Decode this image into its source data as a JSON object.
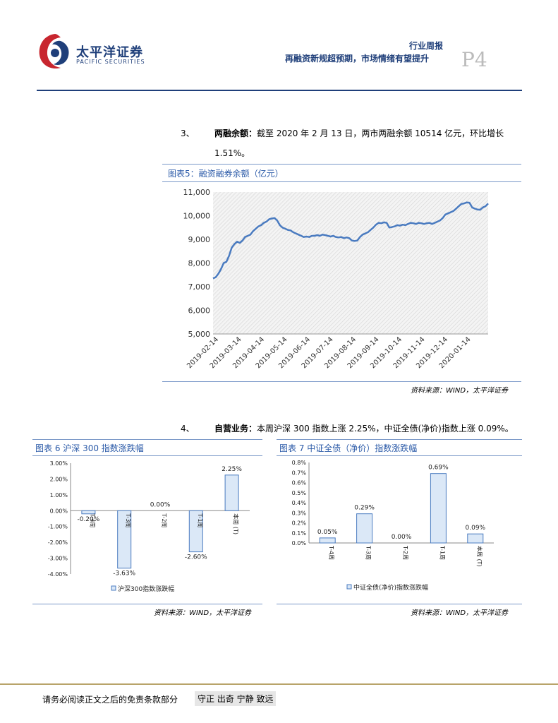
{
  "header": {
    "logo_cn": "太平洋证券",
    "logo_en": "PACIFIC SECURITIES",
    "report_type": "行业周报",
    "report_title": "再融资新规超预期，市场情绪有望提升",
    "page_label": "P4"
  },
  "section3": {
    "num": "3、",
    "bold": "两融余额：",
    "text": "截至 2020 年 2 月 13 日，两市两融余额 10514 亿元，环比增长",
    "text2": "1.51%。"
  },
  "fig5": {
    "title": "图表5：融资融券余额（亿元）",
    "source": "资料来源：WIND，太平洋证券"
  },
  "section4": {
    "num": "4、",
    "bold": "自营业务：",
    "text": "本周沪深 300 指数上涨 2.25%，中证全债(净价)指数上涨 0.09%。"
  },
  "fig6": {
    "title": "图表 6  沪深 300 指数涨跌幅",
    "source": "资料来源：WIND，太平洋证券"
  },
  "fig7": {
    "title": "图表 7  中证全债（净价）指数涨跌幅",
    "source": "资料来源：WIND，太平洋证券"
  },
  "footer": {
    "text": "请务必阅读正文之后的免责条款部分",
    "motto": "守正 出奇 宁静 致远"
  },
  "colors": {
    "navy": "#1f3f7a",
    "line_blue": "#4a7bc0",
    "bar_fill": "#dbe8f7",
    "bar_stroke": "#4a7bc0",
    "gold_line": "#b8a46a"
  },
  "chart_data": [
    {
      "type": "line",
      "title": "",
      "xlabel": "",
      "ylabel": "",
      "ylim": [
        5000,
        11000
      ],
      "yticks": [
        "5,000",
        "6,000",
        "7,000",
        "8,000",
        "9,000",
        "10,000",
        "11,000"
      ],
      "xticks": [
        "2019-02-14",
        "2019-03-14",
        "2019-04-14",
        "2019-05-14",
        "2019-06-14",
        "2019-07-14",
        "2019-08-14",
        "2019-09-14",
        "2019-10-14",
        "2019-11-14",
        "2019-12-14",
        "2020-01-14"
      ],
      "grid": false,
      "series": [
        {
          "values": [
            7350,
            7400,
            7550,
            7750,
            8000,
            8050,
            8300,
            8650,
            8800,
            8900,
            8850,
            8950,
            9100,
            9150,
            9200,
            9350,
            9450,
            9550,
            9600,
            9700,
            9750,
            9850,
            9880,
            9900,
            9800,
            9600,
            9500,
            9450,
            9400,
            9380,
            9300,
            9250,
            9200,
            9150,
            9100,
            9120,
            9100,
            9150,
            9150,
            9180,
            9150,
            9200,
            9180,
            9150,
            9120,
            9150,
            9100,
            9080,
            9100,
            9050,
            9080,
            9050,
            8950,
            8930,
            8950,
            9100,
            9200,
            9250,
            9300,
            9400,
            9500,
            9620,
            9700,
            9680,
            9720,
            9700,
            9500,
            9520,
            9550,
            9600,
            9580,
            9620,
            9600,
            9650,
            9700,
            9680,
            9650,
            9700,
            9680,
            9650,
            9680,
            9700,
            9650,
            9700,
            9750,
            9800,
            9900,
            10050,
            10100,
            10150,
            10200,
            10300,
            10400,
            10500,
            10520,
            10560,
            10550,
            10350,
            10300,
            10260,
            10250,
            10350,
            10400,
            10514
          ]
        }
      ]
    },
    {
      "type": "bar",
      "categories": [
        "T-4周",
        "T-3周",
        "T-2周",
        "T-1周",
        "本周 (T)"
      ],
      "series": [
        {
          "name": "沪深300指数涨跌幅",
          "values": [
            -0.2,
            -3.63,
            0.0,
            -2.6,
            2.25
          ]
        }
      ],
      "data_labels": [
        "-0.20%",
        "-3.63%",
        "0.00%",
        "-2.60%",
        "2.25%"
      ],
      "ylim": [
        -4.0,
        3.0
      ],
      "yticks": [
        "3.00%",
        "2.00%",
        "1.00%",
        "0.00%",
        "-1.00%",
        "-2.00%",
        "-3.00%",
        "-4.00%"
      ],
      "legend": "bottom"
    },
    {
      "type": "bar",
      "categories": [
        "T-4周",
        "T-3周",
        "T-2周",
        "T-1周",
        "本周 (T)"
      ],
      "series": [
        {
          "name": "中证全债(净价)指数涨跌幅",
          "values": [
            0.05,
            0.29,
            0.0,
            0.69,
            0.09
          ]
        }
      ],
      "data_labels": [
        "0.05%",
        "0.29%",
        "0.00%",
        "0.69%",
        "0.09%"
      ],
      "ylim": [
        0.0,
        0.8
      ],
      "yticks": [
        "0.8%",
        "0.7%",
        "0.6%",
        "0.5%",
        "0.4%",
        "0.3%",
        "0.2%",
        "0.1%",
        "0.0%"
      ],
      "legend": "bottom"
    }
  ]
}
